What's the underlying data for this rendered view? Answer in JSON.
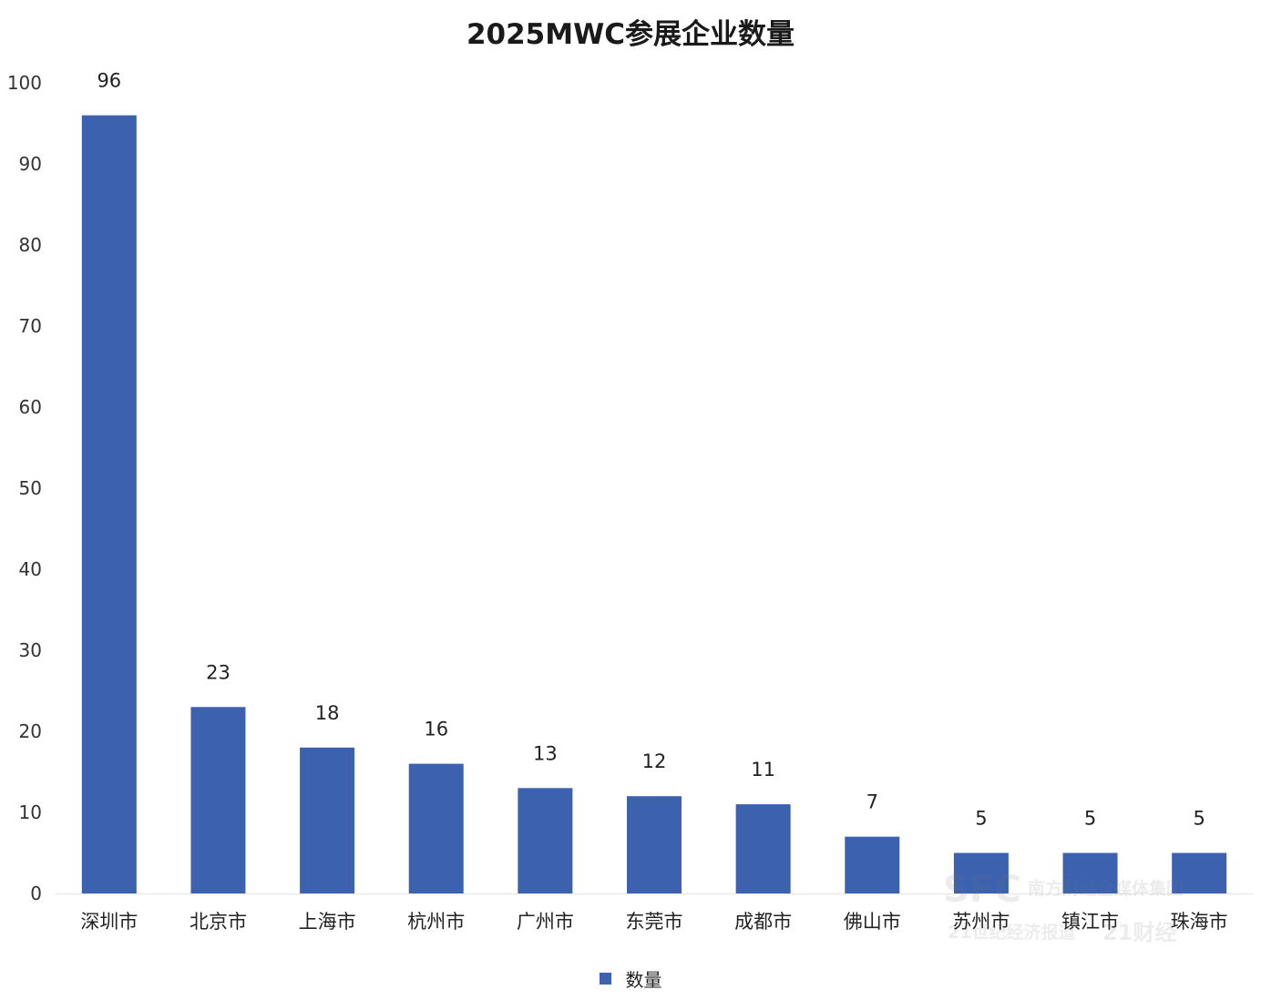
{
  "colors": {
    "bar": "#3c62af",
    "axis": "#e6e6e6",
    "text": "#222222"
  },
  "chart_data": {
    "type": "bar",
    "title": "2025MWC参展企业数量",
    "categories": [
      "深圳市",
      "北京市",
      "上海市",
      "杭州市",
      "广州市",
      "东莞市",
      "成都市",
      "佛山市",
      "苏州市",
      "镇江市",
      "珠海市"
    ],
    "series": [
      {
        "name": "数量",
        "values": [
          96,
          23,
          18,
          16,
          13,
          12,
          11,
          7,
          5,
          5,
          5
        ]
      }
    ],
    "ylim": [
      0,
      100
    ],
    "yticks": [
      0,
      10,
      20,
      30,
      40,
      50,
      60,
      70,
      80,
      90,
      100
    ],
    "xlabel": "",
    "ylabel": "",
    "grid": false,
    "legend": "bottom-center",
    "data_labels": true
  },
  "watermark": {
    "logo": "SFC",
    "line1": "南方财经全媒体集团",
    "line2": "21世纪经济报道",
    "line3": "21财经"
  }
}
